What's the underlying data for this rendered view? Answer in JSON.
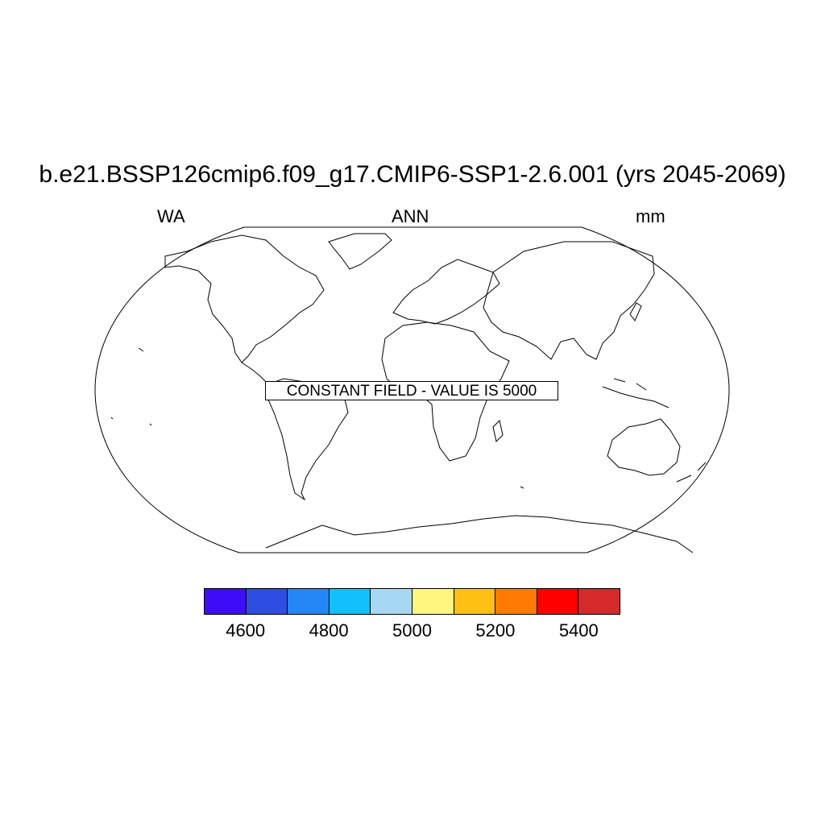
{
  "title": "b.e21.BSSP126cmip6.f09_g17.CMIP6-SSP1-2.6.001 (yrs 2045-2069)",
  "subtitle_left": "WA",
  "subtitle_center": "ANN",
  "subtitle_right": "mm",
  "map": {
    "projection": "robinson",
    "annotation": "CONSTANT FIELD - VALUE IS 5000"
  },
  "colorbar": {
    "colors": [
      "#3f0cf7",
      "#2e4ee2",
      "#2387f5",
      "#12c0fa",
      "#a6d8f3",
      "#fff680",
      "#ffc014",
      "#ff7a00",
      "#ff0000",
      "#d42a2a"
    ],
    "labels": [
      "4600",
      "4800",
      "5000",
      "5200",
      "5400"
    ]
  }
}
